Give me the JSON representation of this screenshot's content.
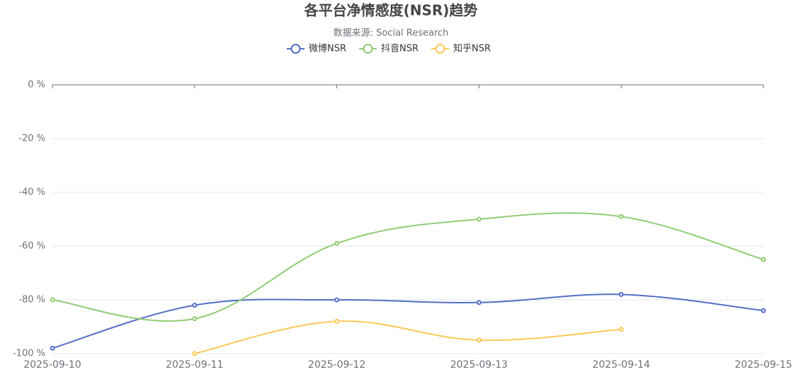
{
  "chart_data": {
    "type": "line",
    "title": "各平台净情感度(NSR)趋势",
    "subtitle": "数据来源: Social Research",
    "categories": [
      "2025-09-10",
      "2025-09-11",
      "2025-09-12",
      "2025-09-13",
      "2025-09-14",
      "2025-09-15"
    ],
    "series": [
      {
        "name": "微博NSR",
        "color": "#5470c6",
        "values": [
          -98,
          -82,
          -80,
          -81,
          -78,
          -84
        ]
      },
      {
        "name": "抖音NSR",
        "color": "#91cc75",
        "values": [
          -80,
          -87,
          -59,
          -50,
          -49,
          -65
        ]
      },
      {
        "name": "知乎NSR",
        "color": "#fac858",
        "values": [
          null,
          -100,
          -88,
          -95,
          -91,
          null
        ]
      }
    ],
    "ylim": [
      -100,
      0
    ],
    "yticks": [
      {
        "value": 0,
        "label": "0 %"
      },
      {
        "value": -20,
        "label": "-20 %"
      },
      {
        "value": -40,
        "label": "-40 %"
      },
      {
        "value": -60,
        "label": "-60 %"
      },
      {
        "value": -80,
        "label": "-80 %"
      },
      {
        "value": -100,
        "label": "-100 %"
      }
    ],
    "grid": true
  }
}
